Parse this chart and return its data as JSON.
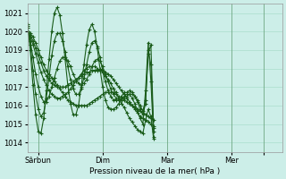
{
  "title": "",
  "xlabel": "Pression niveau de la mer( hPa )",
  "ylabel": "",
  "xlim": [
    0,
    95
  ],
  "ylim": [
    1013.5,
    1021.5
  ],
  "yticks": [
    1014,
    1015,
    1016,
    1017,
    1018,
    1019,
    1020,
    1021
  ],
  "bg_color": "#cceee8",
  "grid_color": "#aaddcc",
  "line_color": "#1a5c1a",
  "xtick_positions": [
    4,
    28,
    52,
    76,
    88
  ],
  "xtick_labels": [
    "Sârbun",
    "Dim",
    "Mar",
    "Mer",
    ""
  ],
  "vline_positions": [
    4,
    28,
    52,
    76,
    88
  ],
  "series": [
    [
      1020.0,
      1019.9,
      1019.7,
      1019.4,
      1019.0,
      1018.6,
      1018.2,
      1017.9,
      1017.7,
      1017.5,
      1017.3,
      1017.1,
      1016.9,
      1016.7,
      1016.5,
      1016.3,
      1016.2,
      1016.1,
      1016.0,
      1016.0,
      1016.0,
      1016.0,
      1016.0,
      1016.1,
      1016.2,
      1016.3,
      1016.4,
      1016.5,
      1016.6,
      1016.7,
      1016.7,
      1016.7,
      1016.7,
      1016.6,
      1016.5,
      1016.4,
      1016.3,
      1016.2,
      1016.1,
      1016.0,
      1015.9,
      1015.8,
      1015.7,
      1015.6,
      1015.5,
      1015.4,
      1015.3,
      1015.2
    ],
    [
      1020.0,
      1019.8,
      1019.5,
      1019.1,
      1018.7,
      1018.3,
      1017.9,
      1017.6,
      1017.4,
      1017.2,
      1017.1,
      1017.0,
      1017.0,
      1017.0,
      1017.0,
      1017.1,
      1017.2,
      1017.3,
      1017.4,
      1017.5,
      1017.6,
      1017.7,
      1017.8,
      1017.8,
      1017.9,
      1017.9,
      1017.9,
      1017.9,
      1017.9,
      1017.8,
      1017.7,
      1017.6,
      1017.4,
      1017.2,
      1017.0,
      1016.8,
      1016.6,
      1016.4,
      1016.2,
      1016.0,
      1015.8,
      1015.6,
      1015.4,
      1015.3,
      1015.2,
      1015.1,
      1015.0,
      1014.9
    ],
    [
      1020.0,
      1019.7,
      1019.3,
      1018.8,
      1018.3,
      1017.8,
      1017.4,
      1017.1,
      1016.8,
      1016.6,
      1016.5,
      1016.4,
      1016.4,
      1016.5,
      1016.6,
      1016.7,
      1016.9,
      1017.1,
      1017.3,
      1017.5,
      1017.7,
      1017.9,
      1018.0,
      1018.1,
      1018.1,
      1018.1,
      1018.0,
      1017.9,
      1017.8,
      1017.6,
      1017.4,
      1017.2,
      1016.9,
      1016.7,
      1016.4,
      1016.1,
      1015.9,
      1015.6,
      1015.3,
      1015.1,
      1014.9,
      1014.7,
      1014.6,
      1014.5,
      1015.2,
      1015.8,
      1015.4,
      1014.2
    ],
    [
      1020.2,
      1019.5,
      1018.6,
      1017.7,
      1017.0,
      1016.5,
      1016.2,
      1016.2,
      1016.5,
      1017.0,
      1017.5,
      1018.0,
      1018.4,
      1018.6,
      1018.6,
      1018.4,
      1018.1,
      1017.7,
      1017.4,
      1017.2,
      1017.1,
      1017.2,
      1017.4,
      1017.7,
      1018.1,
      1018.4,
      1018.5,
      1018.4,
      1018.1,
      1017.7,
      1017.3,
      1016.9,
      1016.6,
      1016.4,
      1016.3,
      1016.3,
      1016.4,
      1016.5,
      1016.6,
      1016.6,
      1016.5,
      1016.3,
      1016.0,
      1015.7,
      1016.3,
      1018.8,
      1019.3,
      1014.8
    ],
    [
      1020.3,
      1019.3,
      1017.9,
      1016.6,
      1015.8,
      1015.4,
      1015.6,
      1016.4,
      1017.5,
      1018.7,
      1019.5,
      1019.9,
      1019.9,
      1019.5,
      1018.9,
      1018.1,
      1017.4,
      1016.9,
      1016.6,
      1016.6,
      1016.9,
      1017.5,
      1018.2,
      1018.9,
      1019.4,
      1019.5,
      1019.2,
      1018.6,
      1017.9,
      1017.3,
      1016.8,
      1016.5,
      1016.3,
      1016.3,
      1016.4,
      1016.5,
      1016.7,
      1016.7,
      1016.8,
      1016.7,
      1016.5,
      1016.2,
      1015.8,
      1015.5,
      1016.1,
      1019.0,
      1018.2,
      1014.6
    ],
    [
      1020.4,
      1019.0,
      1017.1,
      1015.5,
      1014.6,
      1014.5,
      1015.3,
      1016.8,
      1018.5,
      1020.0,
      1021.0,
      1021.3,
      1020.9,
      1019.9,
      1018.5,
      1017.1,
      1016.1,
      1015.5,
      1015.5,
      1016.0,
      1017.0,
      1018.2,
      1019.3,
      1020.1,
      1020.4,
      1020.0,
      1019.1,
      1018.0,
      1017.0,
      1016.3,
      1015.9,
      1015.8,
      1015.8,
      1015.9,
      1016.1,
      1016.3,
      1016.5,
      1016.6,
      1016.6,
      1016.4,
      1016.1,
      1015.7,
      1015.3,
      1015.0,
      1016.8,
      1019.4,
      1017.3,
      1014.3
    ]
  ]
}
